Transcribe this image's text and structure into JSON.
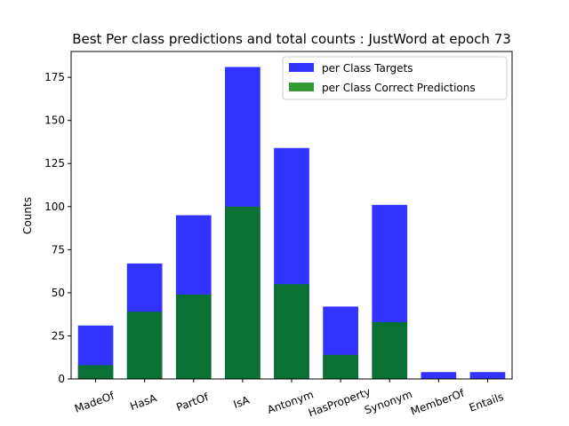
{
  "chart_data": {
    "type": "bar",
    "title": "Best Per class predictions and total counts : JustWord at epoch 73",
    "xlabel": "",
    "ylabel": "Counts",
    "categories": [
      "MadeOf",
      "HasA",
      "PartOf",
      "IsA",
      "Antonym",
      "HasProperty",
      "Synonym",
      "MemberOf",
      "Entails"
    ],
    "series": [
      {
        "name": "per Class Targets",
        "values": [
          31,
          67,
          95,
          181,
          134,
          42,
          101,
          4,
          4
        ],
        "color": "#0000ff",
        "opacity": 0.8
      },
      {
        "name": "per Class Correct Predictions",
        "values": [
          8,
          39,
          49,
          100,
          55,
          14,
          33,
          0,
          0
        ],
        "color": "#008000",
        "opacity": 0.8
      }
    ],
    "ylim": [
      0,
      190
    ],
    "yticks": [
      0,
      25,
      50,
      75,
      100,
      125,
      150,
      175
    ],
    "legend_position": "top-right",
    "grid": false
  }
}
